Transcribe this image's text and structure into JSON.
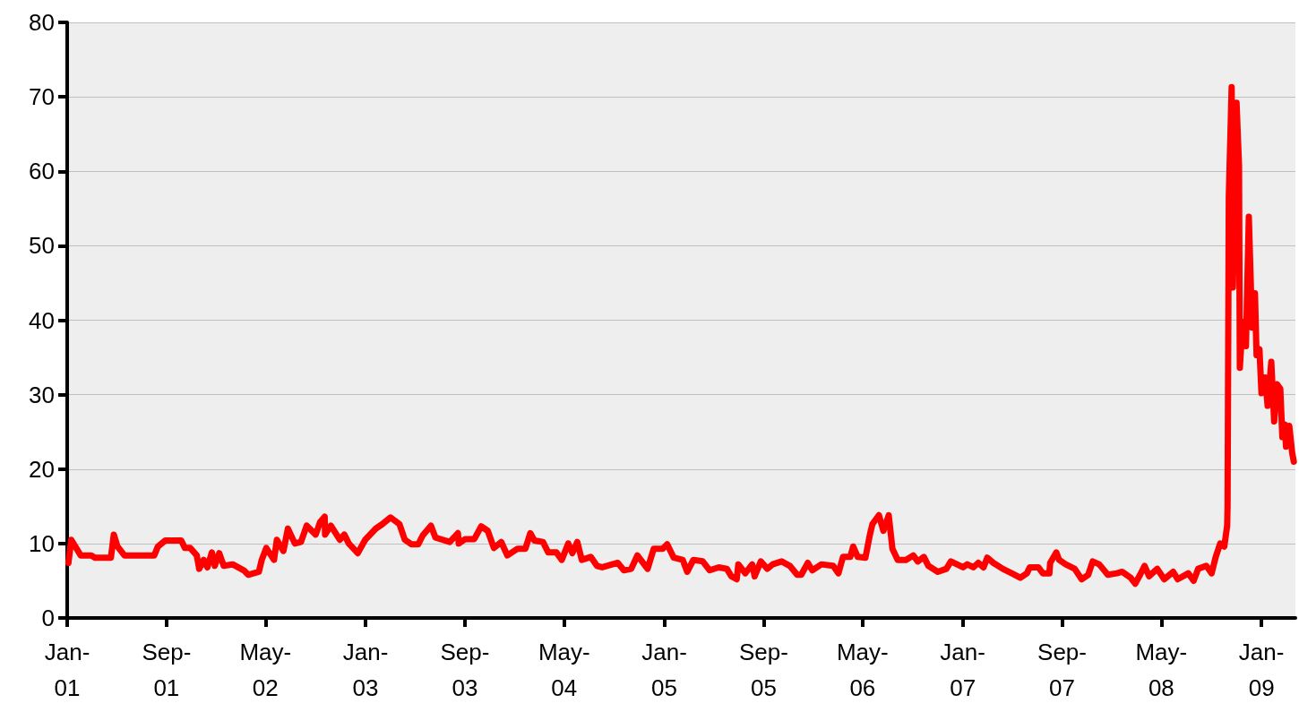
{
  "chart_data": {
    "type": "line",
    "x": [
      "2001-01-04",
      "2001-01-11",
      "2001-02-03",
      "2001-03-01",
      "2001-03-10",
      "2001-04-18",
      "2001-04-25",
      "2001-05-04",
      "2001-05-21",
      "2001-08-02",
      "2001-08-11",
      "2001-08-29",
      "2001-10-07",
      "2001-10-16",
      "2001-10-29",
      "2001-11-14",
      "2001-11-20",
      "2001-12-01",
      "2001-12-10",
      "2001-12-21",
      "2001-12-28",
      "2002-01-08",
      "2002-01-19",
      "2002-02-10",
      "2002-03-09",
      "2002-03-20",
      "2002-04-15",
      "2002-04-22",
      "2002-05-03",
      "2002-05-22",
      "2002-05-29",
      "2002-06-14",
      "2002-06-25",
      "2002-07-12",
      "2002-07-27",
      "2002-08-10",
      "2002-09-01",
      "2002-09-12",
      "2002-09-23",
      "2002-09-24",
      "2002-10-08",
      "2002-10-30",
      "2002-11-10",
      "2002-11-21",
      "2002-12-13",
      "2002-12-31",
      "2003-01-26",
      "2003-02-11",
      "2003-03-03",
      "2003-03-25",
      "2003-04-07",
      "2003-04-23",
      "2003-05-10",
      "2003-05-21",
      "2003-06-10",
      "2003-06-21",
      "2003-07-26",
      "2003-08-15",
      "2003-08-17",
      "2003-09-02",
      "2003-09-24",
      "2003-10-11",
      "2003-10-27",
      "2003-11-11",
      "2003-11-29",
      "2003-12-14",
      "2004-01-08",
      "2004-01-27",
      "2004-02-08",
      "2004-02-18",
      "2004-03-10",
      "2004-03-23",
      "2004-04-12",
      "2004-04-25",
      "2004-05-11",
      "2004-05-21",
      "2004-06-02",
      "2004-06-13",
      "2004-07-05",
      "2004-07-20",
      "2004-08-02",
      "2004-09-09",
      "2004-09-24",
      "2004-10-12",
      "2004-10-27",
      "2004-11-21",
      "2004-12-06",
      "2004-12-28",
      "2005-01-08",
      "2005-01-24",
      "2005-02-15",
      "2005-02-26",
      "2005-03-13",
      "2005-04-05",
      "2005-04-22",
      "2005-05-14",
      "2005-06-03",
      "2005-06-14",
      "2005-06-27",
      "2005-07-01",
      "2005-07-18",
      "2005-08-04",
      "2005-08-10",
      "2005-08-25",
      "2005-09-10",
      "2005-09-23",
      "2005-10-15",
      "2005-11-04",
      "2005-11-22",
      "2005-12-02",
      "2005-12-18",
      "2005-12-29",
      "2006-01-20",
      "2006-02-18",
      "2006-03-03",
      "2006-03-14",
      "2006-04-01",
      "2006-04-08",
      "2006-04-19",
      "2006-05-08",
      "2006-05-19",
      "2006-05-25",
      "2006-06-10",
      "2006-06-21",
      "2006-07-04",
      "2006-07-13",
      "2006-07-26",
      "2006-08-15",
      "2006-09-02",
      "2006-09-13",
      "2006-09-28",
      "2006-10-09",
      "2006-11-01",
      "2006-11-22",
      "2006-12-03",
      "2007-01-02",
      "2007-01-12",
      "2007-01-27",
      "2007-02-08",
      "2007-02-21",
      "2007-03-02",
      "2007-03-17",
      "2007-04-09",
      "2007-05-01",
      "2007-05-22",
      "2007-06-07",
      "2007-06-14",
      "2007-07-05",
      "2007-07-16",
      "2007-08-01",
      "2007-08-03",
      "2007-08-18",
      "2007-08-25",
      "2007-09-10",
      "2007-10-02",
      "2007-10-19",
      "2007-11-04",
      "2007-11-15",
      "2007-12-01",
      "2007-12-22",
      "2008-01-13",
      "2008-01-26",
      "2008-02-16",
      "2008-02-27",
      "2008-03-10",
      "2008-03-21",
      "2008-04-01",
      "2008-04-21",
      "2008-05-08",
      "2008-05-30",
      "2008-06-10",
      "2008-07-06",
      "2008-07-19",
      "2008-07-30",
      "2008-08-19",
      "2008-09-01",
      "2008-09-11",
      "2008-09-22",
      "2008-10-02",
      "2008-10-09",
      "2008-10-10",
      "2008-10-13",
      "2008-10-20",
      "2008-10-23",
      "2008-11-01",
      "2008-11-07",
      "2008-11-09",
      "2008-11-16",
      "2008-11-24",
      "2008-12-01",
      "2008-12-09",
      "2008-12-16",
      "2008-12-20",
      "2008-12-27",
      "2009-01-01",
      "2009-01-10",
      "2009-01-16",
      "2009-01-25",
      "2009-02-01",
      "2009-02-08",
      "2009-02-16",
      "2009-02-21",
      "2009-02-27",
      "2009-03-02",
      "2009-03-10",
      "2009-03-17",
      "2009-03-21"
    ],
    "series": [
      {
        "color": "#ff0000",
        "values": [
          7.4,
          10.5,
          8.4,
          8.4,
          8.1,
          8.1,
          11.2,
          9.6,
          8.4,
          8.4,
          9.6,
          10.4,
          10.4,
          9.4,
          9.4,
          8.4,
          6.6,
          7.8,
          6.8,
          8.8,
          7.0,
          8.7,
          7.0,
          7.2,
          6.4,
          5.8,
          6.2,
          7.8,
          9.4,
          7.8,
          10.5,
          9.0,
          12.0,
          10.0,
          10.2,
          12.4,
          11.2,
          12.9,
          13.6,
          11.2,
          12.4,
          10.5,
          11.2,
          10.0,
          8.7,
          10.5,
          12.0,
          12.6,
          13.5,
          12.6,
          10.5,
          9.9,
          9.9,
          11.1,
          12.4,
          10.8,
          10.2,
          11.4,
          10.0,
          10.6,
          10.6,
          12.3,
          11.7,
          9.4,
          10.2,
          8.4,
          9.3,
          9.3,
          11.4,
          10.4,
          10.2,
          8.8,
          8.8,
          7.8,
          10.0,
          8.7,
          10.2,
          7.8,
          8.2,
          7.0,
          6.8,
          7.4,
          6.4,
          6.6,
          8.4,
          6.6,
          9.3,
          9.3,
          9.9,
          8.1,
          7.8,
          6.2,
          7.8,
          7.6,
          6.4,
          6.8,
          6.6,
          5.6,
          5.2,
          7.2,
          6.0,
          7.2,
          5.6,
          7.6,
          6.6,
          7.2,
          7.6,
          7.0,
          5.8,
          5.8,
          7.4,
          6.4,
          7.2,
          7.0,
          6.0,
          8.2,
          8.2,
          9.6,
          8.2,
          8.1,
          11.2,
          12.6,
          13.8,
          11.7,
          13.8,
          9.3,
          7.8,
          7.8,
          8.4,
          7.6,
          8.2,
          7.0,
          6.2,
          6.6,
          7.6,
          6.8,
          7.2,
          6.8,
          7.4,
          6.8,
          8.1,
          7.4,
          6.6,
          6.0,
          5.4,
          6.0,
          6.8,
          6.8,
          6.0,
          6.0,
          7.4,
          8.8,
          7.8,
          7.2,
          6.6,
          5.2,
          5.8,
          7.6,
          7.2,
          5.8,
          6.0,
          6.2,
          5.4,
          4.6,
          5.8,
          7.0,
          5.6,
          6.6,
          5.2,
          6.2,
          5.2,
          6.0,
          5.0,
          6.6,
          7.0,
          6.0,
          8.2,
          10.0,
          9.6,
          12.4,
          15.0,
          56.6,
          71.3,
          44.4,
          69.2,
          60.8,
          33.6,
          39.8,
          36.5,
          53.9,
          39.0,
          43.6,
          35.3,
          36.1,
          30.2,
          32.3,
          28.5,
          34.4,
          26.4,
          31.4,
          30.8,
          24.3,
          26.0,
          23.0,
          25.8,
          22.2,
          21.0
        ]
      }
    ],
    "xlim": [
      "2001-01-01",
      "2009-03-25"
    ],
    "xticks": [
      {
        "value": "2001-01-01",
        "label": "Jan-01"
      },
      {
        "value": "2001-09-01",
        "label": "Sep-01"
      },
      {
        "value": "2002-05-01",
        "label": "May-02"
      },
      {
        "value": "2003-01-01",
        "label": "Jan-03"
      },
      {
        "value": "2003-09-01",
        "label": "Sep-03"
      },
      {
        "value": "2004-05-01",
        "label": "May-04"
      },
      {
        "value": "2005-01-01",
        "label": "Jan-05"
      },
      {
        "value": "2005-09-01",
        "label": "Sep-05"
      },
      {
        "value": "2006-05-01",
        "label": "May-06"
      },
      {
        "value": "2007-01-01",
        "label": "Jan-07"
      },
      {
        "value": "2007-09-01",
        "label": "Sep-07"
      },
      {
        "value": "2008-05-01",
        "label": "May-08"
      },
      {
        "value": "2009-01-01",
        "label": "Jan-09"
      }
    ],
    "ylim": [
      0,
      80
    ],
    "yticks": [
      0,
      10,
      20,
      30,
      40,
      50,
      60,
      70,
      80
    ],
    "grid": "y",
    "marker": "none",
    "line_style": "solid"
  }
}
